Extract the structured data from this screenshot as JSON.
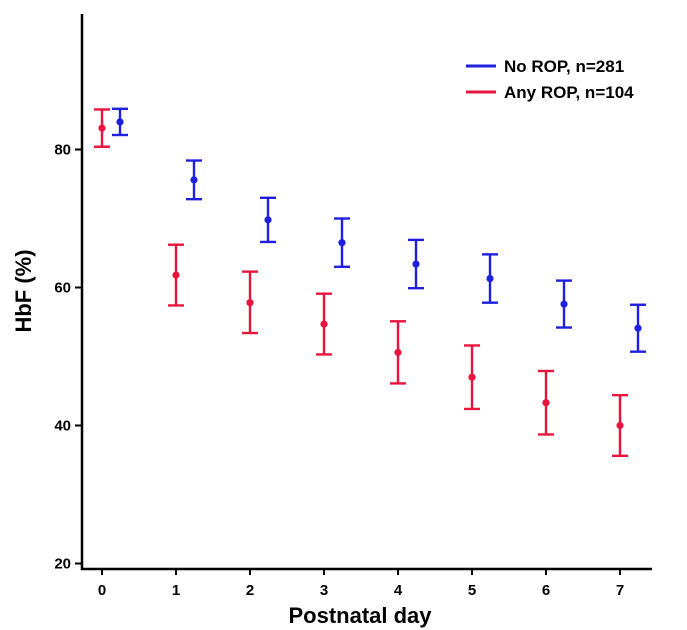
{
  "chart_data": {
    "type": "scatter",
    "xlabel": "Postnatal day",
    "ylabel": "HbF (%)",
    "x": [
      0,
      1,
      2,
      3,
      4,
      5,
      6,
      7
    ],
    "x_ticks": [
      "0",
      "1",
      "2",
      "3",
      "4",
      "5",
      "6",
      "7"
    ],
    "y_ticks": [
      "20",
      "40",
      "60",
      "80"
    ],
    "xlim": [
      -0.3,
      7.5
    ],
    "ylim": [
      19.5,
      99
    ],
    "grid": false,
    "legend_position": "top-right",
    "series": [
      {
        "name": "No ROP, n=281",
        "color": "#1f1fe0",
        "values": [
          84.0,
          75.6,
          69.8,
          66.5,
          63.4,
          61.3,
          57.6,
          54.1
        ],
        "ci_low": [
          82.1,
          72.8,
          66.6,
          63.0,
          59.9,
          57.8,
          54.2,
          50.7
        ],
        "ci_high": [
          85.9,
          78.4,
          73.0,
          70.0,
          66.9,
          64.8,
          61.0,
          57.5
        ]
      },
      {
        "name": "Any ROP, n=104",
        "color": "#e8143c",
        "values": [
          83.1,
          61.8,
          57.8,
          54.7,
          50.6,
          47.0,
          43.3,
          40.0
        ],
        "ci_low": [
          80.4,
          57.4,
          53.4,
          50.3,
          46.1,
          42.4,
          38.7,
          35.6
        ],
        "ci_high": [
          85.8,
          66.2,
          62.3,
          59.1,
          55.1,
          51.6,
          47.9,
          44.4
        ]
      }
    ]
  }
}
